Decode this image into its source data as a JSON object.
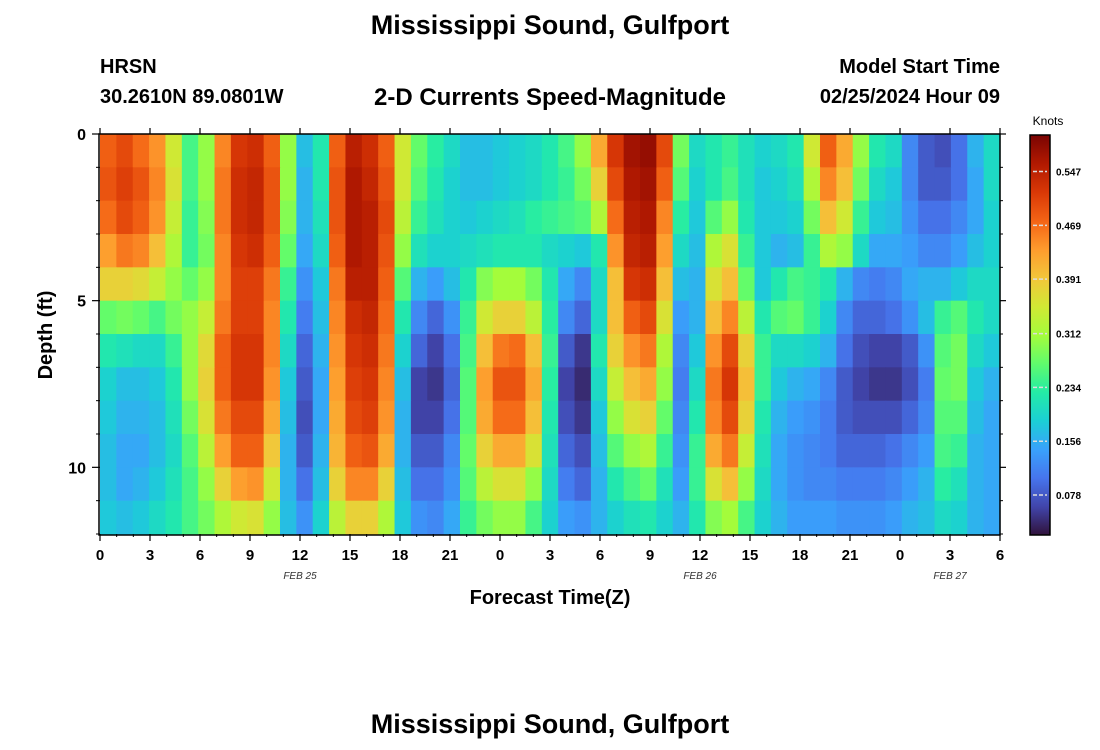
{
  "header": {
    "title": "Mississippi Sound, Gulfport",
    "station": "HRSN",
    "coordinates": "30.2610N  89.0801W",
    "product": "2-D Currents Speed-Magnitude",
    "model_start_label": "Model Start Time",
    "model_start_value": "02/25/2024 Hour 09"
  },
  "footer": {
    "title": "Mississippi Sound, Gulfport"
  },
  "colors": {
    "colormap": [
      "#30123b",
      "#4145ab",
      "#4675ed",
      "#39a2fc",
      "#1bcfd4",
      "#24eca6",
      "#61fc6c",
      "#a4fc3b",
      "#d1e834",
      "#f3c63a",
      "#fe9b2d",
      "#f36315",
      "#d93806",
      "#b11901",
      "#7a0403"
    ]
  },
  "chart_data": {
    "type": "heatmap",
    "title": "2-D Currents Speed-Magnitude",
    "xlabel": "Forecast Time(Z)",
    "ylabel": "Depth (ft)",
    "colorbar_label": "Knots",
    "x_range_hours": [
      0,
      54
    ],
    "ylim": [
      0,
      12
    ],
    "y_inverted": true,
    "vmin": 0.02,
    "vmax": 0.6,
    "x_ticks": [
      "0",
      "3",
      "6",
      "9",
      "12",
      "15",
      "18",
      "21",
      "0",
      "3",
      "6",
      "9",
      "12",
      "15",
      "18",
      "21",
      "0",
      "3",
      "6"
    ],
    "y_ticks": [
      "0",
      "5",
      "10"
    ],
    "date_labels": [
      {
        "label": "FEB 25",
        "hour": 12
      },
      {
        "label": "FEB 26",
        "hour": 36
      },
      {
        "label": "FEB 27",
        "hour": 51
      }
    ],
    "colorbar_ticks": [
      "0.547",
      "0.469",
      "0.391",
      "0.312",
      "0.234",
      "0.156",
      "0.078"
    ],
    "colorbar_tick_values": [
      0.547,
      0.469,
      0.391,
      0.312,
      0.234,
      0.156,
      0.078
    ],
    "depth_levels_ft": [
      1,
      2,
      3,
      4,
      5,
      6,
      7,
      8,
      9,
      10,
      11,
      12
    ],
    "hours": [
      0,
      1,
      2,
      3,
      4,
      5,
      6,
      7,
      8,
      9,
      10,
      11,
      12,
      13,
      14,
      15,
      16,
      17,
      18,
      19,
      20,
      21,
      22,
      23,
      24,
      25,
      26,
      27,
      28,
      29,
      30,
      31,
      32,
      33,
      34,
      35,
      36,
      37,
      38,
      39,
      40,
      41,
      42,
      43,
      44,
      45,
      46,
      47,
      48,
      49,
      50,
      51,
      52,
      53,
      54
    ],
    "speed_knots_by_depth": [
      [
        0.48,
        0.5,
        0.47,
        0.44,
        0.35,
        0.25,
        0.3,
        0.45,
        0.52,
        0.53,
        0.48,
        0.3,
        0.17,
        0.22,
        0.48,
        0.55,
        0.53,
        0.48,
        0.35,
        0.27,
        0.23,
        0.2,
        0.17,
        0.17,
        0.18,
        0.19,
        0.2,
        0.22,
        0.25,
        0.3,
        0.42,
        0.52,
        0.57,
        0.58,
        0.5,
        0.28,
        0.2,
        0.22,
        0.24,
        0.21,
        0.19,
        0.2,
        0.22,
        0.35,
        0.48,
        0.42,
        0.3,
        0.22,
        0.2,
        0.12,
        0.08,
        0.07,
        0.1,
        0.16,
        0.2
      ],
      [
        0.49,
        0.51,
        0.49,
        0.45,
        0.36,
        0.25,
        0.3,
        0.46,
        0.53,
        0.54,
        0.49,
        0.3,
        0.16,
        0.22,
        0.49,
        0.56,
        0.54,
        0.49,
        0.35,
        0.26,
        0.22,
        0.19,
        0.17,
        0.17,
        0.18,
        0.19,
        0.2,
        0.22,
        0.24,
        0.28,
        0.38,
        0.5,
        0.56,
        0.57,
        0.48,
        0.26,
        0.19,
        0.22,
        0.25,
        0.21,
        0.18,
        0.19,
        0.21,
        0.32,
        0.45,
        0.4,
        0.28,
        0.2,
        0.18,
        0.12,
        0.08,
        0.08,
        0.1,
        0.15,
        0.2
      ],
      [
        0.47,
        0.5,
        0.48,
        0.44,
        0.34,
        0.24,
        0.29,
        0.46,
        0.53,
        0.54,
        0.49,
        0.29,
        0.16,
        0.21,
        0.49,
        0.56,
        0.55,
        0.5,
        0.33,
        0.24,
        0.21,
        0.19,
        0.18,
        0.19,
        0.2,
        0.21,
        0.23,
        0.24,
        0.25,
        0.26,
        0.32,
        0.47,
        0.55,
        0.56,
        0.45,
        0.23,
        0.18,
        0.26,
        0.3,
        0.22,
        0.18,
        0.18,
        0.19,
        0.28,
        0.4,
        0.35,
        0.24,
        0.18,
        0.17,
        0.13,
        0.1,
        0.1,
        0.12,
        0.15,
        0.19
      ],
      [
        0.43,
        0.46,
        0.45,
        0.4,
        0.32,
        0.24,
        0.28,
        0.45,
        0.52,
        0.53,
        0.48,
        0.27,
        0.15,
        0.2,
        0.48,
        0.56,
        0.55,
        0.49,
        0.3,
        0.21,
        0.19,
        0.19,
        0.2,
        0.21,
        0.22,
        0.22,
        0.22,
        0.2,
        0.19,
        0.18,
        0.22,
        0.44,
        0.54,
        0.55,
        0.43,
        0.2,
        0.17,
        0.32,
        0.36,
        0.24,
        0.18,
        0.16,
        0.17,
        0.24,
        0.32,
        0.3,
        0.2,
        0.15,
        0.15,
        0.14,
        0.12,
        0.12,
        0.14,
        0.17,
        0.19
      ],
      [
        0.38,
        0.38,
        0.37,
        0.34,
        0.3,
        0.27,
        0.3,
        0.45,
        0.51,
        0.51,
        0.46,
        0.24,
        0.13,
        0.18,
        0.46,
        0.55,
        0.55,
        0.48,
        0.26,
        0.16,
        0.14,
        0.17,
        0.22,
        0.29,
        0.31,
        0.31,
        0.28,
        0.22,
        0.15,
        0.12,
        0.2,
        0.4,
        0.52,
        0.53,
        0.4,
        0.17,
        0.16,
        0.36,
        0.4,
        0.27,
        0.18,
        0.22,
        0.25,
        0.24,
        0.22,
        0.16,
        0.12,
        0.11,
        0.12,
        0.15,
        0.16,
        0.16,
        0.18,
        0.2,
        0.2
      ],
      [
        0.27,
        0.28,
        0.27,
        0.25,
        0.28,
        0.3,
        0.34,
        0.46,
        0.51,
        0.51,
        0.45,
        0.22,
        0.11,
        0.17,
        0.45,
        0.53,
        0.54,
        0.47,
        0.22,
        0.12,
        0.09,
        0.13,
        0.24,
        0.35,
        0.38,
        0.38,
        0.33,
        0.23,
        0.12,
        0.09,
        0.2,
        0.4,
        0.48,
        0.5,
        0.36,
        0.14,
        0.16,
        0.4,
        0.45,
        0.33,
        0.22,
        0.26,
        0.27,
        0.24,
        0.19,
        0.12,
        0.09,
        0.09,
        0.1,
        0.13,
        0.17,
        0.24,
        0.26,
        0.22,
        0.2
      ],
      [
        0.22,
        0.21,
        0.2,
        0.2,
        0.24,
        0.3,
        0.37,
        0.48,
        0.52,
        0.52,
        0.45,
        0.2,
        0.09,
        0.16,
        0.44,
        0.52,
        0.53,
        0.46,
        0.19,
        0.09,
        0.06,
        0.1,
        0.25,
        0.4,
        0.46,
        0.47,
        0.4,
        0.24,
        0.08,
        0.05,
        0.22,
        0.38,
        0.44,
        0.46,
        0.32,
        0.12,
        0.18,
        0.44,
        0.5,
        0.38,
        0.24,
        0.2,
        0.2,
        0.19,
        0.16,
        0.1,
        0.07,
        0.06,
        0.06,
        0.08,
        0.13,
        0.26,
        0.28,
        0.2,
        0.18
      ],
      [
        0.19,
        0.17,
        0.17,
        0.18,
        0.22,
        0.3,
        0.38,
        0.48,
        0.52,
        0.52,
        0.44,
        0.18,
        0.08,
        0.15,
        0.43,
        0.51,
        0.52,
        0.45,
        0.17,
        0.06,
        0.05,
        0.09,
        0.26,
        0.43,
        0.49,
        0.49,
        0.42,
        0.23,
        0.06,
        0.04,
        0.2,
        0.34,
        0.4,
        0.42,
        0.3,
        0.11,
        0.2,
        0.46,
        0.52,
        0.4,
        0.24,
        0.18,
        0.16,
        0.15,
        0.12,
        0.08,
        0.06,
        0.05,
        0.05,
        0.07,
        0.11,
        0.27,
        0.28,
        0.18,
        0.16
      ],
      [
        0.18,
        0.16,
        0.16,
        0.17,
        0.21,
        0.28,
        0.36,
        0.46,
        0.5,
        0.5,
        0.42,
        0.17,
        0.07,
        0.15,
        0.42,
        0.5,
        0.51,
        0.44,
        0.16,
        0.06,
        0.06,
        0.1,
        0.26,
        0.42,
        0.47,
        0.47,
        0.4,
        0.22,
        0.07,
        0.05,
        0.18,
        0.3,
        0.36,
        0.38,
        0.27,
        0.12,
        0.22,
        0.45,
        0.5,
        0.38,
        0.22,
        0.16,
        0.14,
        0.13,
        0.11,
        0.08,
        0.07,
        0.07,
        0.07,
        0.09,
        0.12,
        0.26,
        0.26,
        0.17,
        0.15
      ],
      [
        0.17,
        0.15,
        0.15,
        0.17,
        0.2,
        0.26,
        0.33,
        0.43,
        0.48,
        0.48,
        0.39,
        0.16,
        0.08,
        0.16,
        0.41,
        0.48,
        0.49,
        0.42,
        0.16,
        0.08,
        0.08,
        0.12,
        0.27,
        0.38,
        0.42,
        0.42,
        0.36,
        0.21,
        0.09,
        0.07,
        0.17,
        0.26,
        0.3,
        0.32,
        0.24,
        0.13,
        0.24,
        0.42,
        0.46,
        0.34,
        0.21,
        0.15,
        0.13,
        0.12,
        0.11,
        0.09,
        0.09,
        0.09,
        0.1,
        0.12,
        0.14,
        0.25,
        0.24,
        0.16,
        0.15
      ],
      [
        0.17,
        0.15,
        0.16,
        0.18,
        0.21,
        0.25,
        0.3,
        0.38,
        0.43,
        0.44,
        0.35,
        0.16,
        0.1,
        0.17,
        0.38,
        0.45,
        0.45,
        0.38,
        0.17,
        0.1,
        0.1,
        0.13,
        0.26,
        0.33,
        0.36,
        0.36,
        0.3,
        0.2,
        0.11,
        0.09,
        0.16,
        0.22,
        0.25,
        0.27,
        0.21,
        0.14,
        0.24,
        0.36,
        0.4,
        0.3,
        0.2,
        0.15,
        0.13,
        0.12,
        0.12,
        0.11,
        0.11,
        0.11,
        0.12,
        0.14,
        0.16,
        0.23,
        0.21,
        0.16,
        0.15
      ],
      [
        0.18,
        0.17,
        0.18,
        0.2,
        0.22,
        0.25,
        0.28,
        0.32,
        0.35,
        0.36,
        0.3,
        0.17,
        0.13,
        0.19,
        0.33,
        0.38,
        0.38,
        0.32,
        0.18,
        0.13,
        0.12,
        0.15,
        0.24,
        0.28,
        0.3,
        0.3,
        0.25,
        0.19,
        0.14,
        0.13,
        0.16,
        0.19,
        0.21,
        0.22,
        0.19,
        0.16,
        0.22,
        0.29,
        0.31,
        0.25,
        0.19,
        0.16,
        0.14,
        0.14,
        0.14,
        0.13,
        0.13,
        0.13,
        0.14,
        0.16,
        0.17,
        0.2,
        0.19,
        0.16,
        0.15
      ]
    ]
  }
}
